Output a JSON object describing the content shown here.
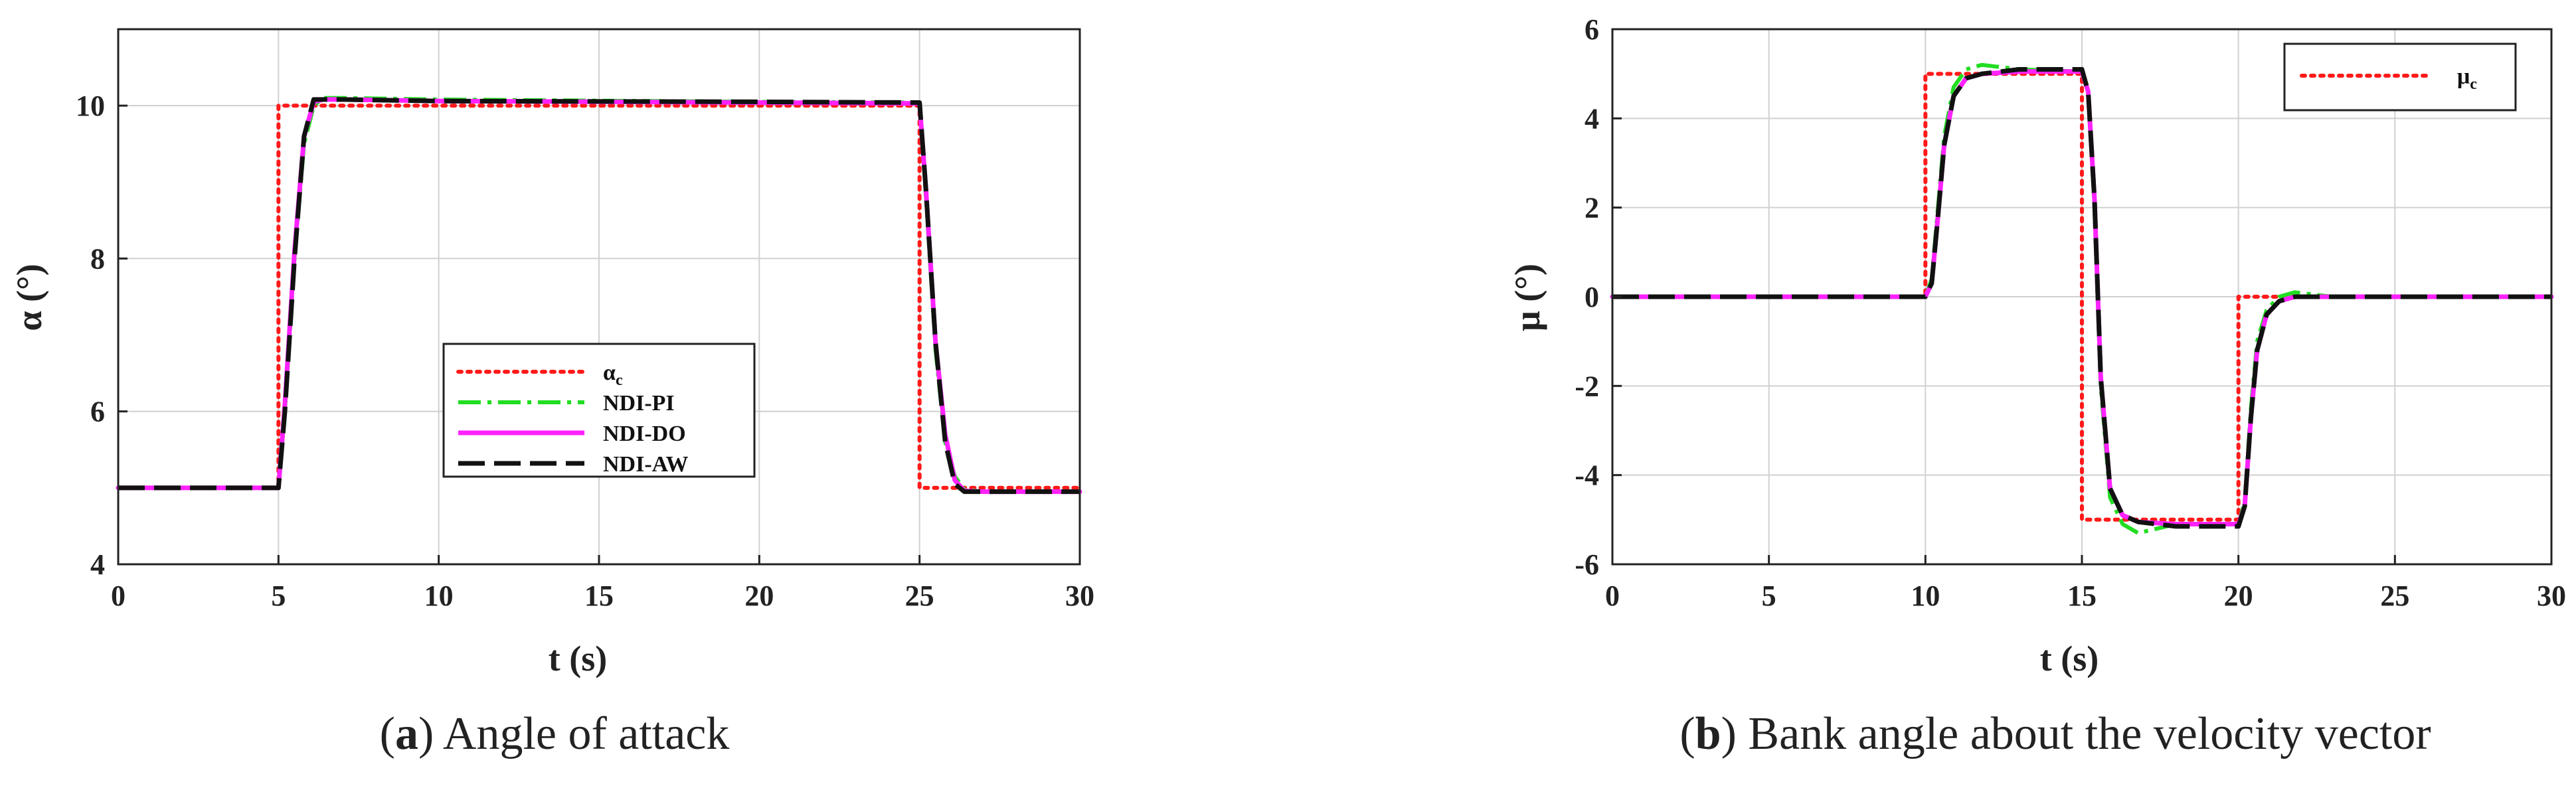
{
  "colors": {
    "command": "#ff1a1a",
    "ndi_pi": "#22dd22",
    "ndi_do": "#ff22ff",
    "ndi_aw": "#111111",
    "grid": "#d0d0d0"
  },
  "chart_data": [
    {
      "type": "line",
      "caption_letter": "a",
      "caption_text": ") Angle of attack",
      "caption_open": "(",
      "xlabel": "t (s)",
      "ylabel": "α (°)",
      "xlim": [
        0,
        30
      ],
      "ylim": [
        4,
        11
      ],
      "xticks": [
        0,
        5,
        10,
        15,
        20,
        25,
        30
      ],
      "yticks": [
        4,
        6,
        8,
        10
      ],
      "grid": true,
      "legend_position": "lower-center",
      "legend": [
        "α",
        "c",
        "NDI-PI",
        "NDI-DO",
        "NDI-AW"
      ],
      "series": [
        {
          "name": "αc",
          "style": "dotted",
          "x": [
            0,
            5,
            5,
            25,
            25,
            30
          ],
          "y": [
            5,
            5,
            10,
            10,
            5,
            5
          ]
        },
        {
          "name": "NDI-PI",
          "style": "dashdot",
          "x": [
            0,
            5,
            5.2,
            5.5,
            5.8,
            6.1,
            6.4,
            7,
            10,
            20,
            25,
            25.2,
            25.5,
            25.8,
            26.1,
            26.4,
            27,
            30
          ],
          "y": [
            5,
            5,
            6.0,
            8.0,
            9.5,
            10.0,
            10.1,
            10.1,
            10.08,
            10.05,
            10.04,
            8.8,
            6.8,
            5.6,
            5.15,
            4.98,
            4.95,
            4.95
          ]
        },
        {
          "name": "NDI-DO",
          "style": "solid",
          "x": [
            0,
            5,
            5.2,
            5.5,
            5.8,
            6.1,
            6.4,
            7,
            10,
            20,
            25,
            25.2,
            25.5,
            25.8,
            26.1,
            26.4,
            27,
            30
          ],
          "y": [
            5,
            5,
            6.1,
            8.1,
            9.6,
            10.05,
            10.08,
            10.08,
            10.06,
            10.04,
            10.03,
            8.9,
            6.9,
            5.7,
            5.1,
            4.96,
            4.95,
            4.95
          ]
        },
        {
          "name": "NDI-AW",
          "style": "dashed",
          "x": [
            0,
            5,
            5.2,
            5.5,
            5.8,
            6.1,
            6.4,
            7,
            10,
            20,
            25,
            25.2,
            25.5,
            25.8,
            26.1,
            26.4,
            27,
            30
          ],
          "y": [
            5,
            5,
            6.0,
            8.0,
            9.6,
            10.08,
            10.08,
            10.08,
            10.06,
            10.05,
            10.04,
            8.9,
            6.9,
            5.6,
            5.05,
            4.95,
            4.95,
            4.95
          ]
        }
      ]
    },
    {
      "type": "line",
      "caption_letter": "b",
      "caption_text": ") Bank angle about the velocity vector",
      "caption_open": "(",
      "xlabel": "t (s)",
      "ylabel": "μ (°)",
      "xlim": [
        0,
        30
      ],
      "ylim": [
        -6,
        6
      ],
      "xticks": [
        0,
        5,
        10,
        15,
        20,
        25,
        30
      ],
      "yticks": [
        -6,
        -4,
        -2,
        0,
        2,
        4,
        6
      ],
      "grid": true,
      "legend_position": "top-right",
      "legend": [
        "μ",
        "c"
      ],
      "series": [
        {
          "name": "μc",
          "style": "dotted",
          "x": [
            0,
            10,
            10,
            15,
            15,
            20,
            20,
            30
          ],
          "y": [
            0,
            0,
            5,
            5,
            -5,
            -5,
            0,
            0
          ]
        },
        {
          "name": "NDI-PI",
          "style": "dashdot",
          "x": [
            0,
            10,
            10.2,
            10.4,
            10.6,
            10.9,
            11.3,
            11.8,
            13,
            15,
            15.2,
            15.4,
            15.6,
            15.9,
            16.3,
            16.8,
            18,
            20,
            20.2,
            20.4,
            20.6,
            20.9,
            21.3,
            21.8,
            23,
            30
          ],
          "y": [
            0,
            0,
            0.4,
            2.0,
            3.6,
            4.7,
            5.1,
            5.2,
            5.1,
            5.05,
            4.6,
            2.0,
            -2.0,
            -4.5,
            -5.1,
            -5.3,
            -5.1,
            -5.1,
            -4.6,
            -2.5,
            -1.0,
            -0.3,
            0.0,
            0.1,
            0.0,
            0.0
          ]
        },
        {
          "name": "NDI-DO",
          "style": "solid",
          "x": [
            0,
            10,
            10.2,
            10.4,
            10.6,
            10.9,
            11.3,
            11.8,
            13,
            15,
            15.2,
            15.4,
            15.6,
            15.9,
            16.3,
            16.8,
            18,
            20,
            20.2,
            20.4,
            20.6,
            20.9,
            21.3,
            21.8,
            23,
            30
          ],
          "y": [
            0,
            0,
            0.3,
            1.8,
            3.4,
            4.5,
            4.9,
            5.0,
            5.05,
            5.05,
            4.6,
            2.2,
            -1.8,
            -4.3,
            -4.9,
            -5.05,
            -5.1,
            -5.1,
            -4.7,
            -2.7,
            -1.2,
            -0.4,
            -0.1,
            0.0,
            0.0,
            0.0
          ]
        },
        {
          "name": "NDI-AW",
          "style": "dashed",
          "x": [
            0,
            10,
            10.2,
            10.4,
            10.6,
            10.9,
            11.3,
            11.8,
            13,
            15,
            15.2,
            15.4,
            15.6,
            15.9,
            16.3,
            16.8,
            18,
            20,
            20.2,
            20.4,
            20.6,
            20.9,
            21.3,
            21.8,
            23,
            30
          ],
          "y": [
            0,
            0,
            0.3,
            1.8,
            3.4,
            4.5,
            4.9,
            5.0,
            5.1,
            5.1,
            4.6,
            2.2,
            -1.8,
            -4.3,
            -4.9,
            -5.05,
            -5.15,
            -5.15,
            -4.7,
            -2.7,
            -1.2,
            -0.4,
            -0.1,
            0.0,
            0.0,
            0.0
          ]
        }
      ]
    }
  ]
}
